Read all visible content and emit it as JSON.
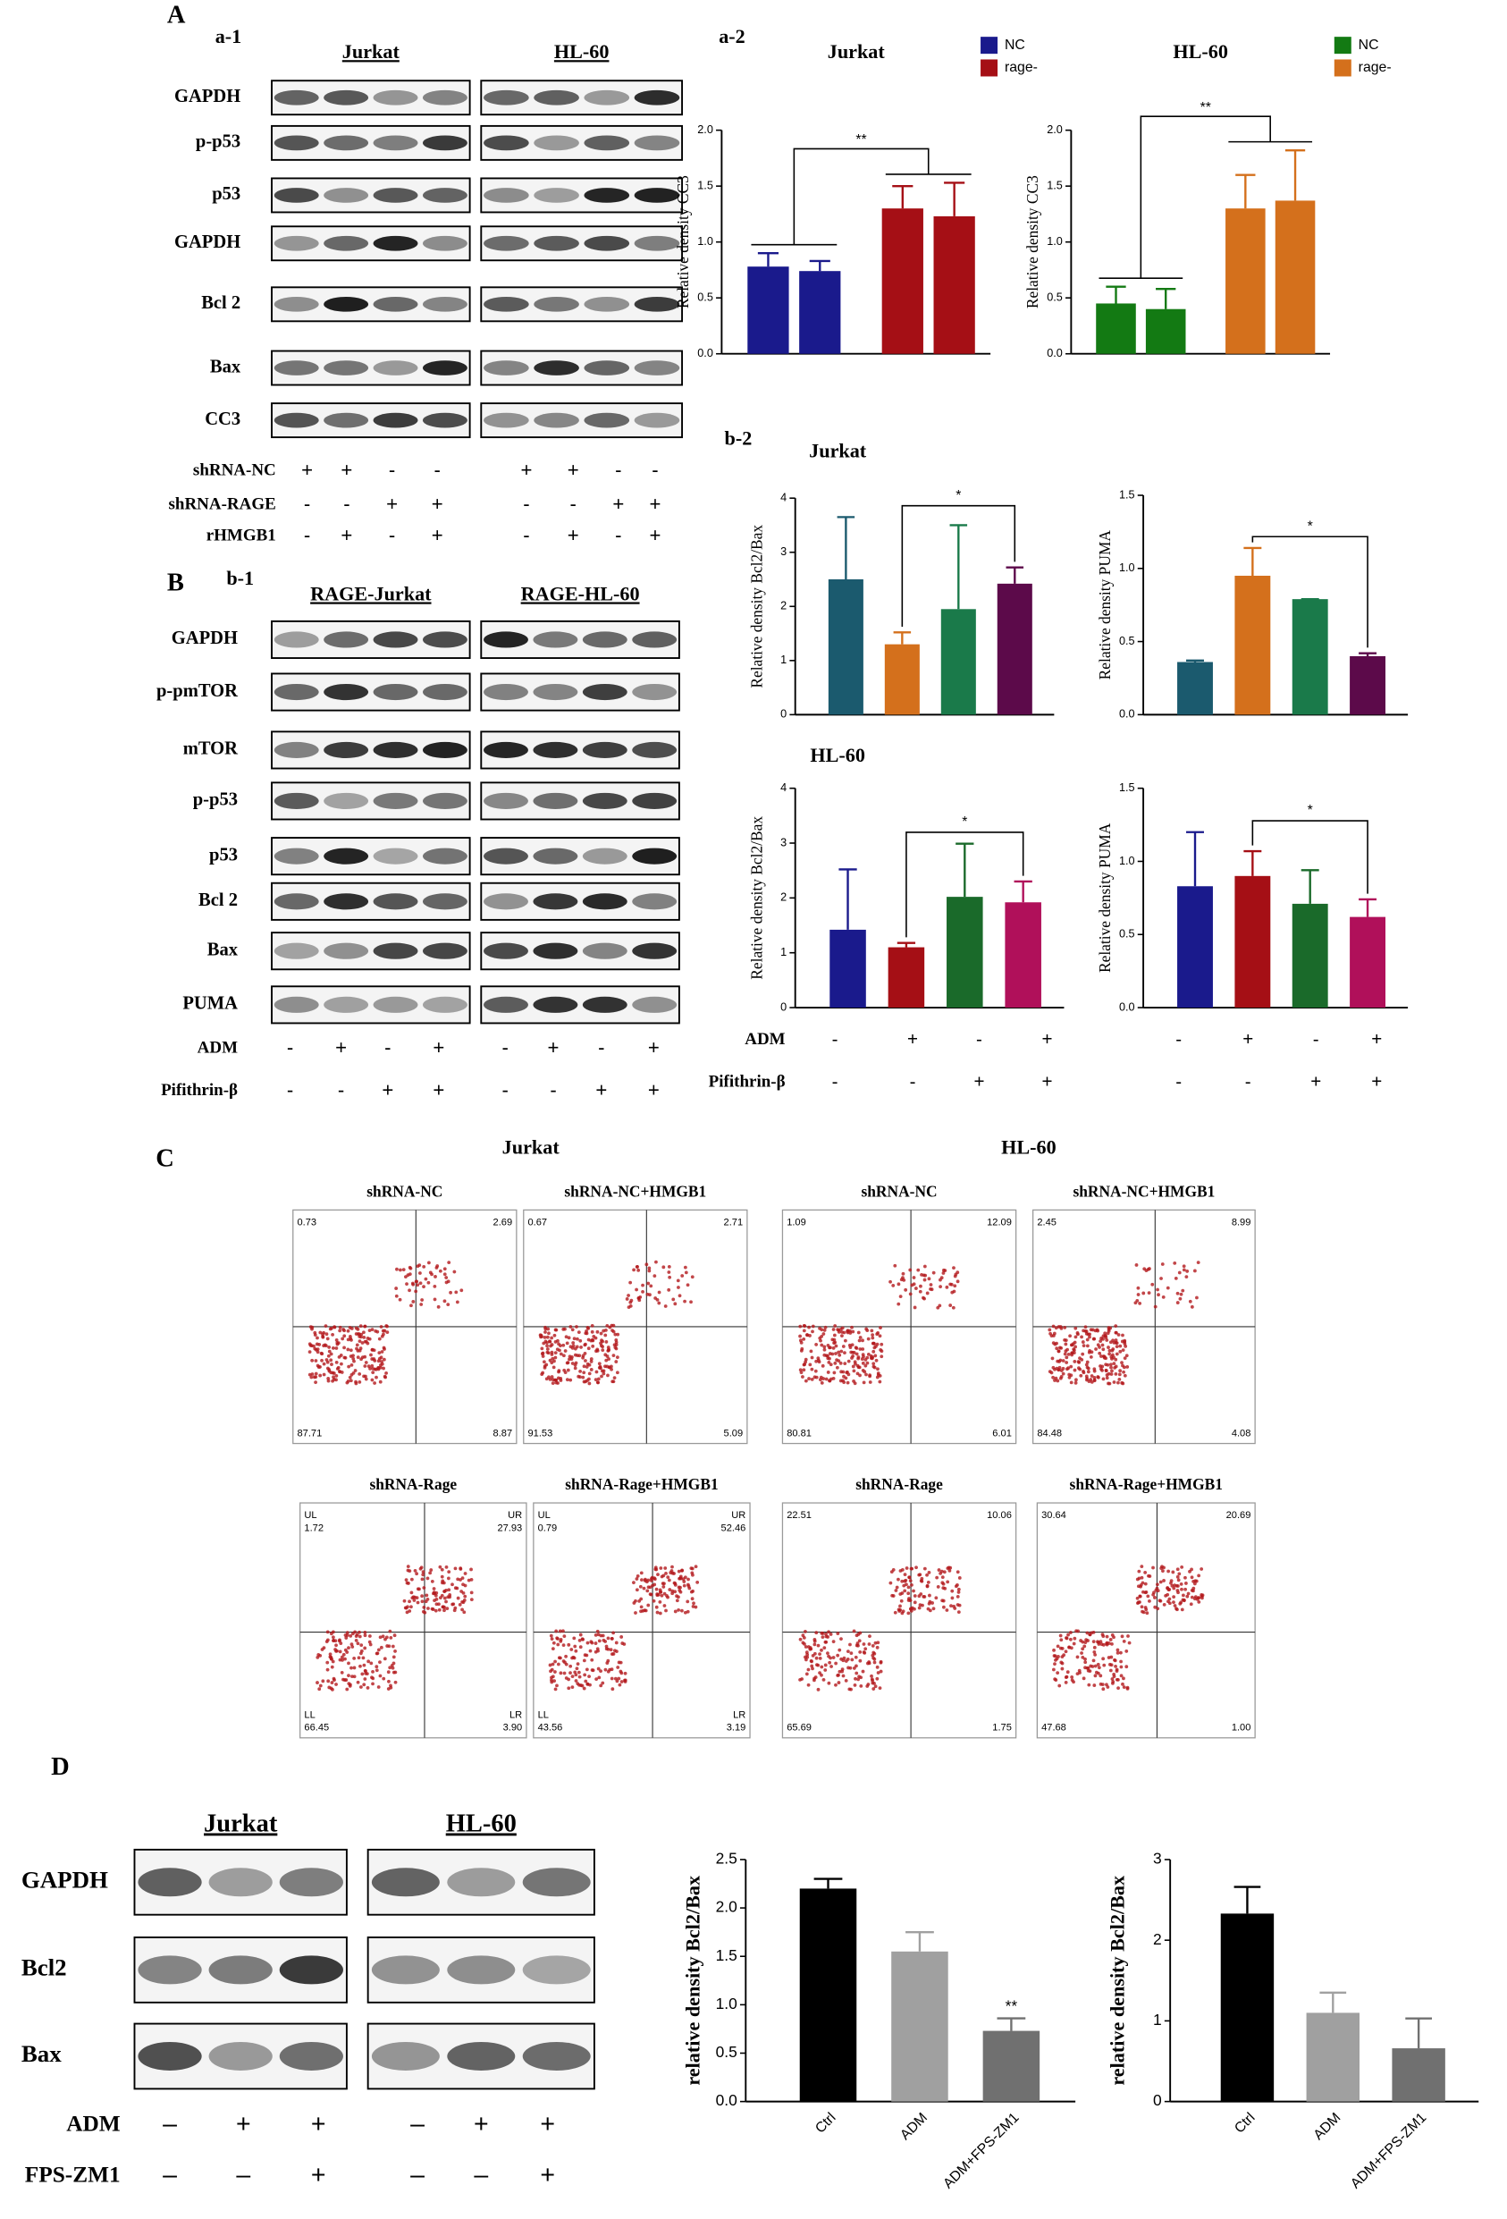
{
  "panel_labels": [
    "A",
    "B",
    "C",
    "D"
  ],
  "blot_A": {
    "label": "a-1",
    "cells": [
      "Jurkat",
      "HL-60"
    ],
    "rows": [
      "GAPDH",
      "p-p53",
      "p53",
      "GAPDH",
      "Bcl 2",
      "Bax",
      "CC3"
    ],
    "conditions": [
      {
        "name": "shRNA-NC",
        "signs": [
          "+",
          "+",
          "-",
          "-",
          "+",
          "+",
          "-",
          "-"
        ]
      },
      {
        "name": "shRNA-RAGE",
        "signs": [
          "-",
          "-",
          "+",
          "+",
          "-",
          "-",
          "+",
          "+"
        ]
      },
      {
        "name": "rHMGB1",
        "signs": [
          "-",
          "+",
          "-",
          "+",
          "-",
          "+",
          "-",
          "+"
        ]
      }
    ]
  },
  "chart_A_label": "a-2",
  "blot_B": {
    "label": "b-1",
    "cells": [
      "RAGE-Jurkat",
      "RAGE-HL-60"
    ],
    "rows": [
      "GAPDH",
      "p-pmTOR",
      "mTOR",
      "p-p53",
      "p53",
      "Bcl 2",
      "Bax",
      "PUMA"
    ],
    "conditions": [
      {
        "name": "ADM",
        "signs": [
          "-",
          "+",
          "-",
          "+",
          "-",
          "+",
          "-",
          "+"
        ]
      },
      {
        "name": "Pifithrin-β",
        "signs": [
          "-",
          "-",
          "+",
          "+",
          "-",
          "-",
          "+",
          "+"
        ]
      }
    ]
  },
  "chart_B_label": "b-2",
  "chart_B_conditions": [
    {
      "name": "ADM",
      "signs": [
        "-",
        "+",
        "-",
        "+",
        "-",
        "+",
        "-",
        "+"
      ]
    },
    {
      "name": "Pifithrin-β",
      "signs": [
        "-",
        "-",
        "+",
        "+",
        "-",
        "-",
        "+",
        "+"
      ]
    }
  ],
  "flow": {
    "cells": [
      "Jurkat",
      "HL-60"
    ],
    "quadrant_labels": [
      "UL",
      "UR",
      "LL",
      "LR"
    ],
    "plots": [
      {
        "title": "shRNA-NC",
        "quadrants": [
          "0.73",
          "2.69",
          "87.71",
          "8.87"
        ],
        "show_quadrant_labels": false
      },
      {
        "title": "shRNA-NC+HMGB1",
        "quadrants": [
          "0.67",
          "2.71",
          "91.53",
          "5.09"
        ],
        "show_quadrant_labels": false
      },
      {
        "title": "shRNA-NC",
        "quadrants": [
          "1.09",
          "12.09",
          "80.81",
          "6.01"
        ],
        "show_quadrant_labels": false
      },
      {
        "title": "shRNA-NC+HMGB1",
        "quadrants": [
          "2.45",
          "8.99",
          "84.48",
          "4.08"
        ],
        "show_quadrant_labels": false
      },
      {
        "title": "shRNA-Rage",
        "quadrants": [
          "1.72",
          "27.93",
          "66.45",
          "3.90"
        ],
        "show_quadrant_labels": true
      },
      {
        "title": "shRNA-Rage+HMGB1",
        "quadrants": [
          "0.79",
          "52.46",
          "43.56",
          "3.19"
        ],
        "show_quadrant_labels": true
      },
      {
        "title": "shRNA-Rage",
        "quadrants": [
          "22.51",
          "10.06",
          "65.69",
          "1.75"
        ],
        "show_quadrant_labels": false
      },
      {
        "title": "shRNA-Rage+HMGB1",
        "quadrants": [
          "30.64",
          "20.69",
          "47.68",
          "1.00"
        ],
        "show_quadrant_labels": false
      }
    ]
  },
  "blot_D": {
    "cells": [
      "Jurkat",
      "HL-60"
    ],
    "rows": [
      "GAPDH",
      "Bcl2",
      "Bax"
    ],
    "conditions": [
      {
        "name": "ADM",
        "signs": [
          "–",
          "+",
          "+",
          "–",
          "+",
          "+"
        ]
      },
      {
        "name": "FPS-ZM1",
        "signs": [
          "–",
          "–",
          "+",
          "–",
          "–",
          "+"
        ]
      }
    ]
  },
  "chart_data": [
    {
      "type": "bar",
      "title": "Jurkat",
      "ylabel": "Relative density CC3",
      "ylim": [
        0,
        2
      ],
      "yticks": [
        {
          "value": 0,
          "label": "0.0"
        },
        0.5,
        {
          "value": 1,
          "label": "1.0"
        },
        1.5,
        {
          "value": 2,
          "label": "2.0"
        }
      ],
      "series": [
        {
          "name": "NC",
          "color": "#1a1a8c",
          "values": [
            0.78,
            0.74
          ],
          "errors": [
            0.12,
            0.09
          ]
        },
        {
          "name": "rage-",
          "color": "#a50f15",
          "values": [
            1.3,
            1.23
          ],
          "errors": [
            0.2,
            0.3
          ]
        }
      ],
      "annotation": "**"
    },
    {
      "type": "bar",
      "title": "HL-60",
      "ylabel": "Relative density CC3",
      "ylim": [
        0,
        2
      ],
      "yticks": [
        {
          "value": 0,
          "label": "0.0"
        },
        0.5,
        {
          "value": 1,
          "label": "1.0"
        },
        1.5,
        {
          "value": 2,
          "label": "2.0"
        }
      ],
      "series": [
        {
          "name": "NC",
          "color": "#137a13",
          "values": [
            0.45,
            0.4
          ],
          "errors": [
            0.15,
            0.18
          ]
        },
        {
          "name": "rage-",
          "color": "#d4701c",
          "values": [
            1.3,
            1.37
          ],
          "errors": [
            0.3,
            0.45
          ]
        }
      ],
      "annotation": "**"
    },
    {
      "type": "bar",
      "title": "Jurkat",
      "ylabel": "Relative density Bcl2/Bax",
      "ylim": [
        0,
        4
      ],
      "yticks": [
        0,
        1,
        2,
        3,
        4
      ],
      "values": [
        2.5,
        1.3,
        1.95,
        2.42
      ],
      "errors": [
        1.15,
        0.22,
        1.55,
        0.3
      ],
      "colors": [
        "#1b5a6e",
        "#d4701c",
        "#1a7a4a",
        "#5c0a4a"
      ],
      "annotation": "*"
    },
    {
      "type": "bar",
      "ylabel": "Relative density PUMA",
      "ylim": [
        0,
        1.5
      ],
      "yticks": [
        {
          "value": 0,
          "label": "0.0"
        },
        0.5,
        {
          "value": 1,
          "label": "1.0"
        },
        1.5
      ],
      "values": [
        0.36,
        0.95,
        0.79,
        0.4
      ],
      "errors": [
        0.01,
        0.19,
        0.0,
        0.02
      ],
      "colors": [
        "#1b5a6e",
        "#d4701c",
        "#1a7a4a",
        "#5c0a4a"
      ],
      "annotation": "*"
    },
    {
      "type": "bar",
      "title": "HL-60",
      "ylabel": "Relative density Bcl2/Bax",
      "ylim": [
        0,
        4
      ],
      "yticks": [
        0,
        1,
        2,
        3,
        4
      ],
      "values": [
        1.42,
        1.1,
        2.02,
        1.92
      ],
      "errors": [
        1.1,
        0.08,
        0.97,
        0.38
      ],
      "colors": [
        "#1a1a8c",
        "#a50f15",
        "#1a6a2a",
        "#b0105a"
      ],
      "annotation": "*"
    },
    {
      "type": "bar",
      "ylabel": "Relative density PUMA",
      "ylim": [
        0,
        1.5
      ],
      "yticks": [
        {
          "value": 0,
          "label": "0.0"
        },
        0.5,
        {
          "value": 1,
          "label": "1.0"
        },
        1.5
      ],
      "values": [
        0.83,
        0.9,
        0.71,
        0.62
      ],
      "errors": [
        0.37,
        0.17,
        0.23,
        0.12
      ],
      "colors": [
        "#1a1a8c",
        "#a50f15",
        "#1a6a2a",
        "#b0105a"
      ],
      "annotation": "*"
    },
    {
      "type": "bar",
      "ylabel": "relative density Bcl2/Bax",
      "ylim": [
        0,
        2.5
      ],
      "yticks": [
        {
          "value": 0,
          "label": "0.0"
        },
        0.5,
        {
          "value": 1,
          "label": "1.0"
        },
        1.5,
        {
          "value": 2,
          "label": "2.0"
        },
        2.5
      ],
      "categories": [
        "Ctrl",
        "ADM",
        "ADM+FPS-ZM1"
      ],
      "values": [
        2.2,
        1.55,
        0.73
      ],
      "errors": [
        0.1,
        0.2,
        0.13
      ],
      "colors": [
        "#000000",
        "#a0a0a0",
        "#707070"
      ],
      "annotation": "**"
    },
    {
      "type": "bar",
      "ylabel": "relative density Bcl2/Bax",
      "ylim": [
        0,
        3
      ],
      "yticks": [
        0,
        1,
        2,
        3
      ],
      "categories": [
        "Ctrl",
        "ADM",
        "ADM+FPS-ZM1"
      ],
      "values": [
        2.33,
        1.1,
        0.66
      ],
      "errors": [
        0.33,
        0.25,
        0.37
      ],
      "colors": [
        "#000000",
        "#a0a0a0",
        "#707070"
      ]
    }
  ]
}
